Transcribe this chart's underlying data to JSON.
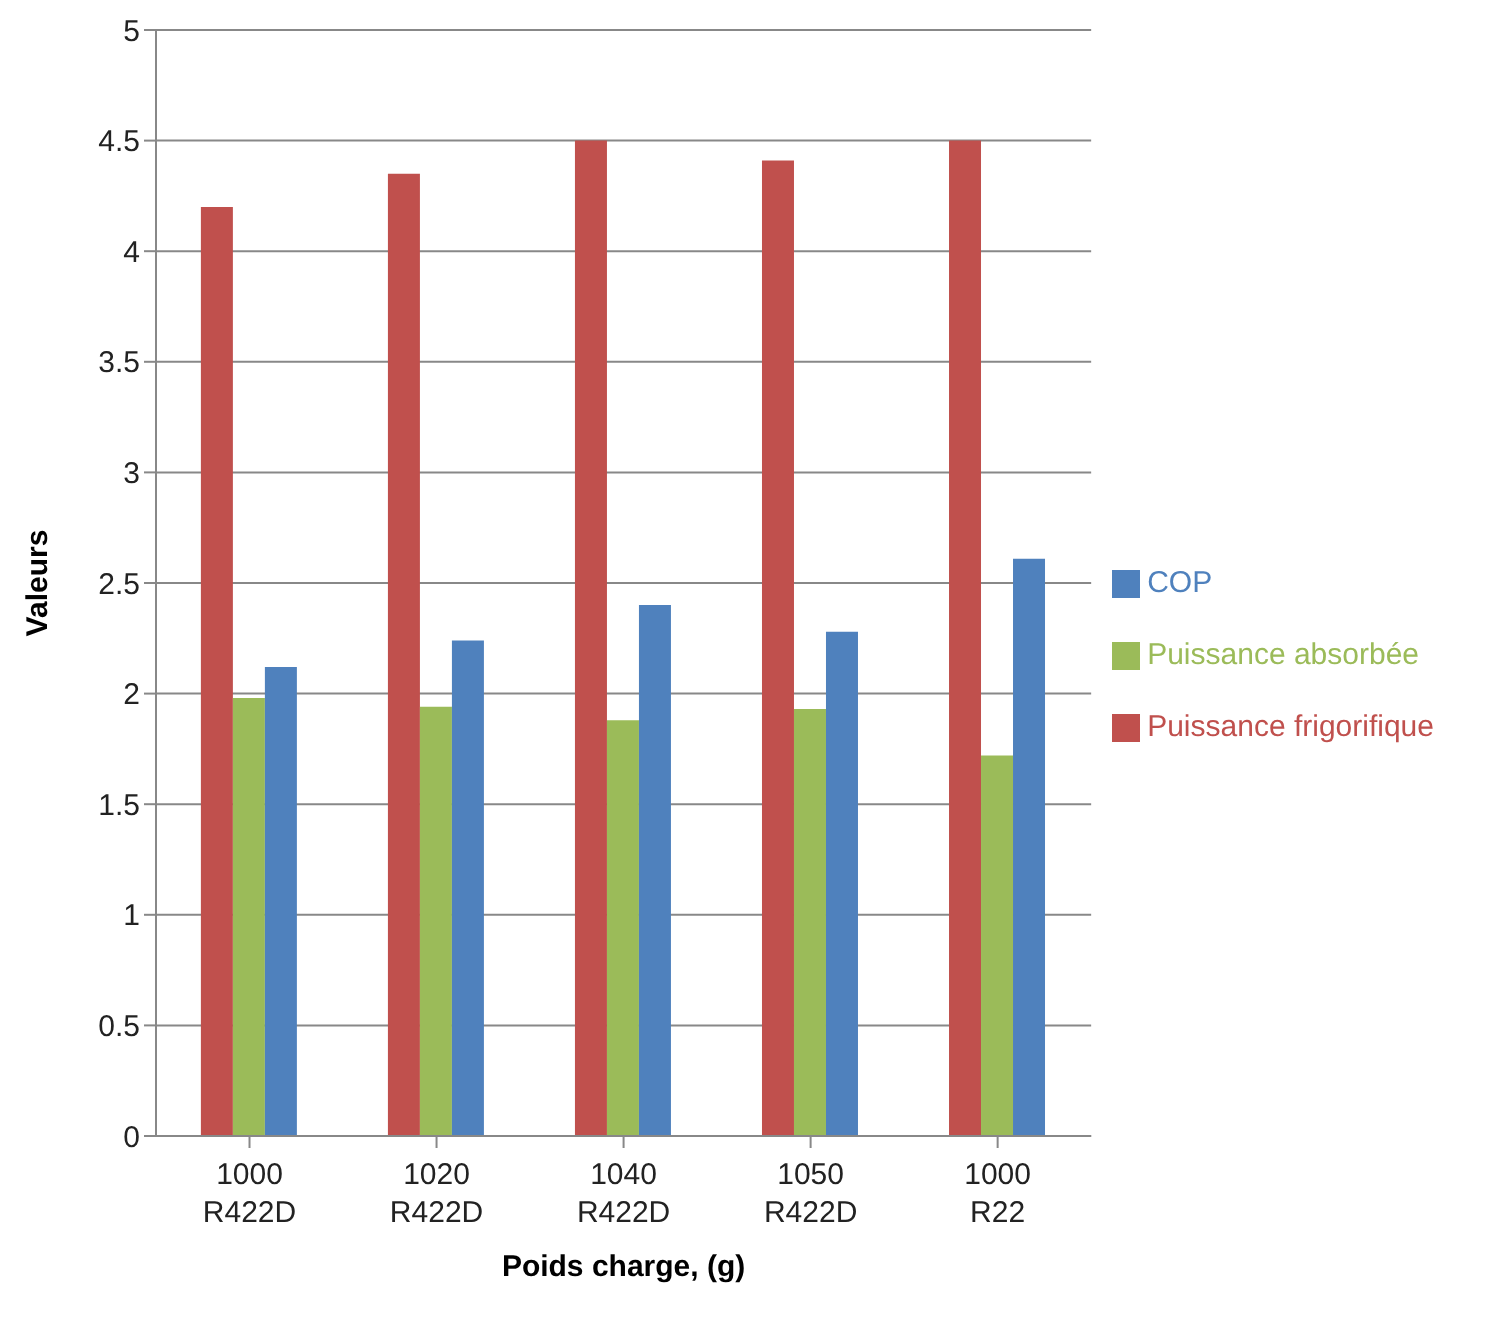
{
  "chart_data": {
    "type": "bar",
    "xlabel": "Poids charge, (g)",
    "ylabel": "Valeurs",
    "categories": [
      "1000 R422D",
      "1020 R422D",
      "1040 R422D",
      "1050 R422D",
      "1000 R22"
    ],
    "series": [
      {
        "name": "Puissance frigorifique",
        "color": "#c0504d",
        "values": [
          4.2,
          4.35,
          4.5,
          4.41,
          4.5
        ]
      },
      {
        "name": "Puissance absorbée",
        "color": "#9bbb59",
        "values": [
          1.98,
          1.94,
          1.88,
          1.93,
          1.72
        ]
      },
      {
        "name": "COP",
        "color": "#4f81bd",
        "values": [
          2.12,
          2.24,
          2.4,
          2.28,
          2.61
        ]
      }
    ],
    "ylim": [
      0,
      5
    ],
    "yticks": [
      0,
      0.5,
      1,
      1.5,
      2,
      2.5,
      3,
      3.5,
      4,
      4.5,
      5
    ],
    "grid": "y",
    "legend": "right"
  }
}
